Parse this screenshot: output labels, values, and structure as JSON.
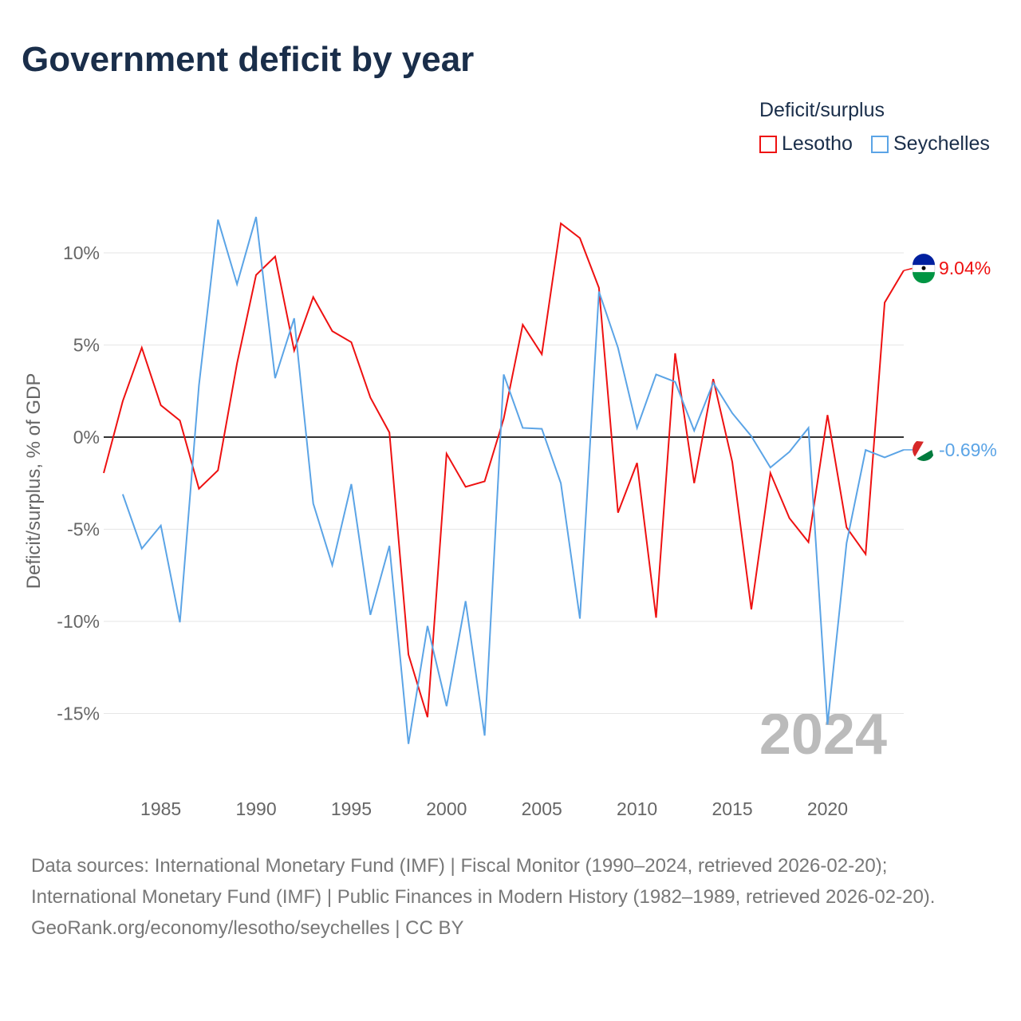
{
  "title": "Government deficit by year",
  "legend": {
    "title": "Deficit/surplus"
  },
  "year_watermark": "2024",
  "footer": {
    "sources": "Data sources: International Monetary Fund (IMF) | Fiscal Monitor (1990–2024, retrieved 2026-02-20); International Monetary Fund (IMF) | Public Finances in Modern History (1982–1989, retrieved 2026-02-20).",
    "credit": "GeoRank.org/economy/lesotho/seychelles | CC BY"
  },
  "chart_data": {
    "type": "line",
    "title": "Government deficit by year",
    "xlabel": "",
    "ylabel": "Deficit/surplus, % of GDP",
    "xlim": [
      1982,
      2024
    ],
    "ylim": [
      -17,
      12
    ],
    "xticks": [
      1985,
      1990,
      1995,
      2000,
      2005,
      2010,
      2015,
      2020
    ],
    "yticks": [
      {
        "v": 10,
        "label": "10%"
      },
      {
        "v": 5,
        "label": "5%"
      },
      {
        "v": 0,
        "label": "0%"
      },
      {
        "v": -5,
        "label": "-5%"
      },
      {
        "v": -10,
        "label": "-10%"
      },
      {
        "v": -15,
        "label": "-15%"
      }
    ],
    "grid": true,
    "legend_position": "top-right",
    "series": [
      {
        "name": "Lesotho",
        "color": "#ee1111",
        "end_label": "9.04%",
        "start": 1982,
        "values": [
          -1.95,
          1.95,
          4.85,
          1.73,
          0.9,
          -2.8,
          -1.8,
          4.0,
          8.8,
          9.8,
          4.7,
          7.6,
          5.75,
          5.15,
          2.15,
          0.25,
          -11.8,
          -15.2,
          -0.9,
          -2.7,
          -2.4,
          1.0,
          6.1,
          4.5,
          11.6,
          10.8,
          8.1,
          -4.1,
          -1.4,
          -9.8,
          4.55,
          -2.5,
          3.15,
          -1.35,
          -9.35,
          -1.95,
          -4.4,
          -5.7,
          1.2,
          -4.9,
          -6.35,
          7.3,
          9.04
        ]
      },
      {
        "name": "Seychelles",
        "color": "#5ba4e6",
        "end_label": "-0.69%",
        "start": 1983,
        "values": [
          -3.1,
          -6.05,
          -4.8,
          -10.05,
          2.8,
          11.8,
          8.3,
          11.95,
          3.2,
          6.45,
          -3.6,
          -6.95,
          -2.55,
          -9.65,
          -5.9,
          -16.65,
          -10.25,
          -14.6,
          -8.9,
          -16.2,
          3.4,
          0.5,
          0.45,
          -2.5,
          -9.85,
          7.9,
          4.85,
          0.5,
          3.4,
          3.0,
          0.35,
          2.95,
          1.3,
          0.05,
          -1.65,
          -0.8,
          0.5,
          -15.6,
          -5.75,
          -0.7,
          -1.1,
          -0.69
        ]
      }
    ]
  }
}
